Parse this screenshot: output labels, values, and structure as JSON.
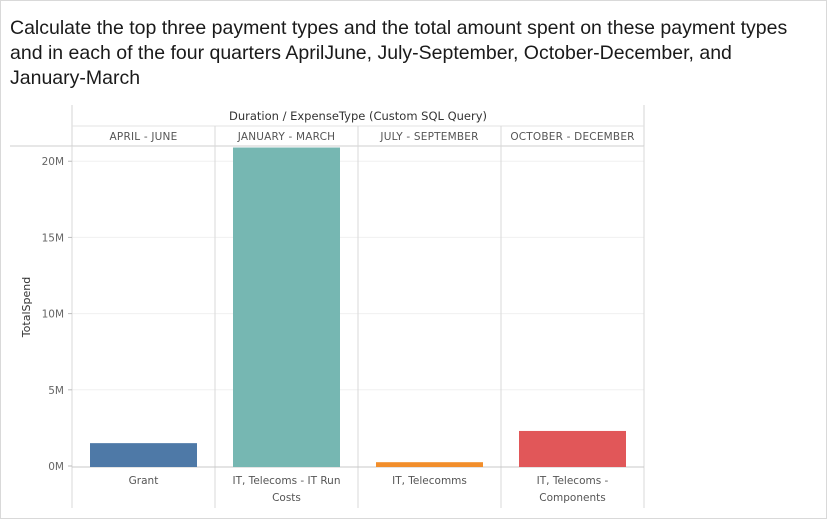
{
  "question": "Calculate the top three payment types and the total amount spent on these payment types and in each of the four quarters AprilJune, July-September, October-December, and January-March",
  "chart_data": {
    "type": "bar",
    "header": "Duration / ExpenseType (Custom SQL Query)",
    "ylabel": "TotalSpend",
    "ylim": [
      0,
      21000000
    ],
    "yticks": [
      {
        "value": 0,
        "label": "0M"
      },
      {
        "value": 5000000,
        "label": "5M"
      },
      {
        "value": 10000000,
        "label": "10M"
      },
      {
        "value": 15000000,
        "label": "15M"
      },
      {
        "value": 20000000,
        "label": "20M"
      }
    ],
    "panes": [
      {
        "duration": "APRIL - JUNE",
        "category": [
          "Grant"
        ],
        "value": 1500000,
        "color": "#4e79a7"
      },
      {
        "duration": "JANUARY - MARCH",
        "category": [
          "IT, Telecoms - IT Run",
          "Costs"
        ],
        "value": 20900000,
        "color": "#76b7b2"
      },
      {
        "duration": "JULY - SEPTEMBER",
        "category": [
          "IT, Telecomms"
        ],
        "value": 250000,
        "color": "#f28e2b"
      },
      {
        "duration": "OCTOBER - DECEMBER",
        "category": [
          "IT, Telecoms -",
          "Components"
        ],
        "value": 2300000,
        "color": "#e15759"
      }
    ]
  }
}
